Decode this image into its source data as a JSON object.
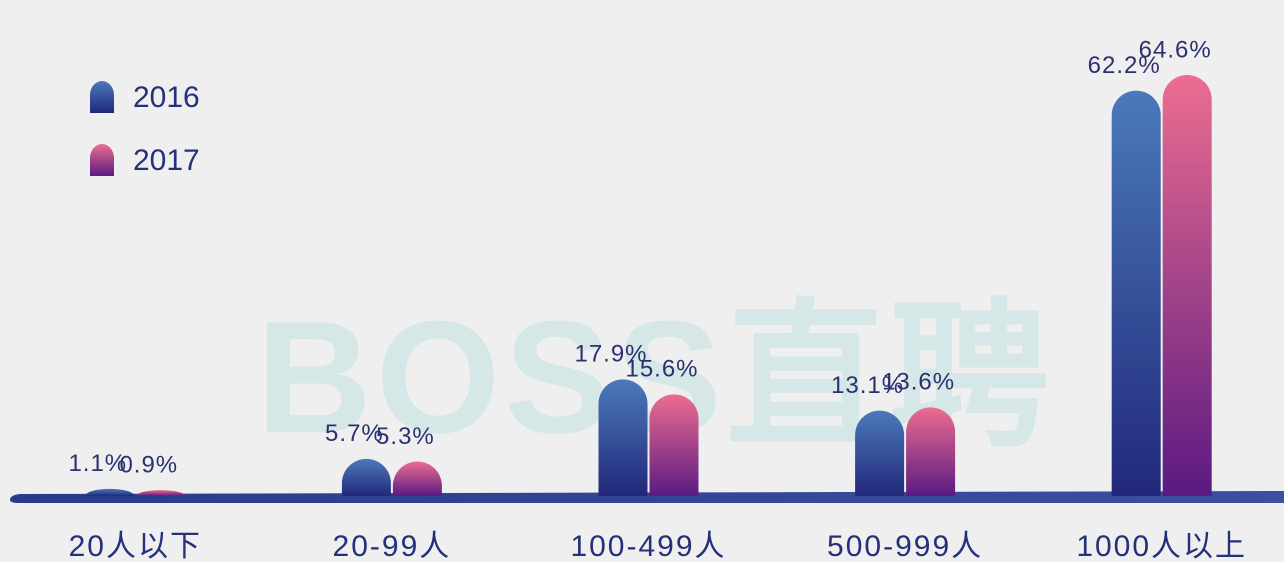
{
  "chart_data": {
    "type": "bar",
    "watermark": "BOSS直聘",
    "categories": [
      "20人以下",
      "20-99人",
      "100-499人",
      "500-999人",
      "1000人以上"
    ],
    "series": [
      {
        "name": "2016",
        "gradient": [
          "#4a7abb",
          "#22287a"
        ],
        "values": [
          1.1,
          5.7,
          17.9,
          13.1,
          62.2
        ],
        "value_labels": [
          "1.1%",
          "5.7%",
          "17.9%",
          "13.1%",
          "62.2%"
        ]
      },
      {
        "name": "2017",
        "gradient": [
          "#ec6d90",
          "#5a1a82"
        ],
        "values": [
          0.9,
          5.3,
          15.6,
          13.6,
          64.6
        ],
        "value_labels": [
          "0.9%",
          "5.3%",
          "15.6%",
          "13.6%",
          "64.6%"
        ]
      }
    ],
    "legend": "top-left"
  }
}
